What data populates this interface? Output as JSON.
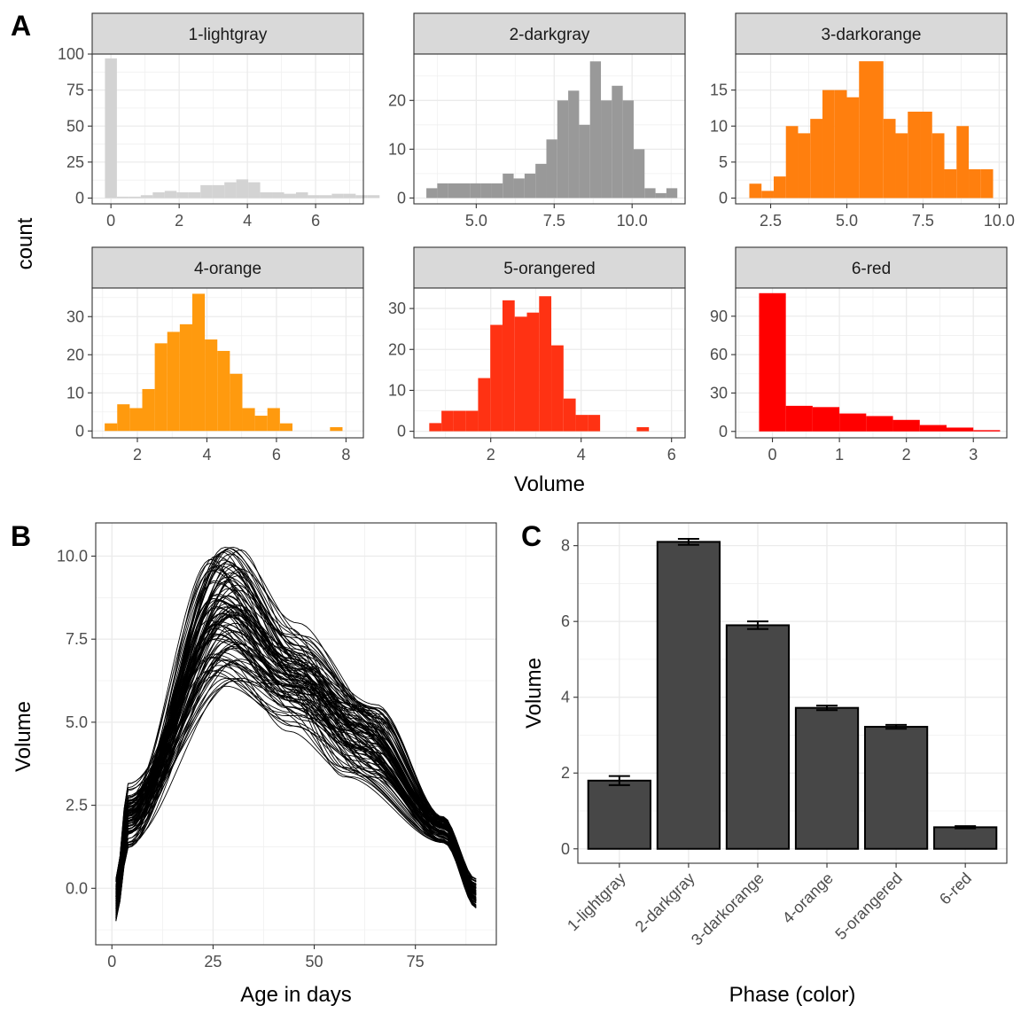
{
  "panel_labels": [
    "A",
    "B",
    "C"
  ],
  "chart_data": [
    {
      "panel": "A",
      "type": "bar",
      "subtype": "histogram-facets",
      "xlabel": "Volume",
      "ylabel": "count",
      "grid": true,
      "facets": [
        {
          "label": "1-lightgray",
          "color": "#d3d3d3",
          "bin_width": 0.35,
          "x_start": -0.175,
          "values": [
            97,
            1,
            1,
            2,
            4,
            5,
            4,
            4,
            9,
            9,
            11,
            13,
            11,
            4,
            4,
            3,
            4,
            2,
            2,
            3,
            3,
            2,
            2
          ],
          "xlim": [
            -0.55,
            7.4
          ],
          "ylim": [
            -4,
            100
          ],
          "xticks": [
            0,
            2,
            4,
            6
          ],
          "yticks": [
            0,
            25,
            50,
            75,
            100
          ]
        },
        {
          "label": "2-darkgray",
          "color": "#999999",
          "bin_width": 0.35,
          "x_start": 3.4,
          "values": [
            2,
            3,
            3,
            3,
            3,
            3,
            3,
            5,
            4,
            5,
            7,
            12,
            20,
            22,
            15,
            28,
            20,
            23,
            20,
            10,
            2,
            1,
            2
          ],
          "xlim": [
            3.0,
            11.7
          ],
          "ylim": [
            -1.2,
            29.5
          ],
          "xticks": [
            5.0,
            7.5,
            10.0
          ],
          "yticks": [
            0,
            10,
            20
          ]
        },
        {
          "label": "3-darkorange",
          "color": "#ff7f0e",
          "bin_width": 0.4,
          "x_start": 1.8,
          "values": [
            2,
            1,
            3,
            10,
            9,
            11,
            15,
            15,
            14,
            19,
            19,
            11,
            9,
            12,
            12,
            9,
            4,
            10,
            4,
            4
          ],
          "xlim": [
            1.35,
            10.25
          ],
          "ylim": [
            -0.8,
            20
          ],
          "xticks": [
            2.5,
            5.0,
            7.5,
            10.0
          ],
          "yticks": [
            0,
            5,
            10,
            15
          ]
        },
        {
          "label": "4-orange",
          "color": "#ff9a0e",
          "bin_width": 0.36,
          "x_start": 1.06,
          "values": [
            2,
            7,
            6,
            11,
            23,
            26,
            28,
            36,
            24,
            21,
            15,
            6,
            4,
            6,
            2,
            0,
            0,
            0,
            1
          ],
          "xlim": [
            0.7,
            8.5
          ],
          "ylim": [
            -1.8,
            37.5
          ],
          "xticks": [
            2,
            4,
            6,
            8
          ],
          "yticks": [
            0,
            10,
            20,
            30
          ]
        },
        {
          "label": "5-orangered",
          "color": "#ff3213",
          "bin_width": 0.27,
          "x_start": 0.64,
          "values": [
            2,
            5,
            5,
            5,
            13,
            26,
            32,
            28,
            29,
            33,
            21,
            8,
            4,
            4,
            0,
            0,
            0,
            1
          ],
          "xlim": [
            0.3,
            6.3
          ],
          "ylim": [
            -1.6,
            35
          ],
          "xticks": [
            2,
            4,
            6
          ],
          "yticks": [
            0,
            10,
            20,
            30
          ]
        },
        {
          "label": "6-red",
          "color": "#ff0000",
          "bin_width": 0.4,
          "x_start": -0.2,
          "values": [
            108,
            20,
            19,
            14,
            12,
            9,
            5,
            3,
            1
          ],
          "xlim": [
            -0.55,
            3.5
          ],
          "ylim": [
            -5,
            112
          ],
          "xticks": [
            0,
            1,
            2,
            3
          ],
          "yticks": [
            0,
            30,
            60,
            90
          ]
        }
      ]
    },
    {
      "panel": "B",
      "type": "line",
      "xlabel": "Age in days",
      "ylabel": "Volume",
      "grid": true,
      "xlim": [
        -4,
        95
      ],
      "ylim": [
        -1.7,
        11
      ],
      "xticks": [
        0,
        25,
        50,
        75
      ],
      "ytick_labels": [
        "0.0",
        "2.5",
        "5.0",
        "7.5",
        "10.0"
      ],
      "yticks": [
        0,
        2.5,
        5,
        7.5,
        10
      ],
      "x_range": [
        1,
        90
      ],
      "curve_count": 100,
      "peak_day_range": [
        24,
        32
      ],
      "peak_volume_range": [
        6.0,
        10.3
      ],
      "shoulder_day": 62,
      "shoulder_volume_range": [
        2.1,
        5.6
      ],
      "end_volume_range": [
        -0.6,
        0.3
      ],
      "line_color": "#000000"
    },
    {
      "panel": "C",
      "type": "bar",
      "xlabel": "Phase (color)",
      "ylabel": "Volume",
      "grid": true,
      "categories": [
        "1-lightgray",
        "2-darkgray",
        "3-darkorange",
        "4-orange",
        "5-orangered",
        "6-red"
      ],
      "values": [
        1.8,
        8.1,
        5.9,
        3.72,
        3.22,
        0.57
      ],
      "error": [
        0.12,
        0.08,
        0.1,
        0.06,
        0.05,
        0.03
      ],
      "ylim": [
        -0.38,
        8.6
      ],
      "yticks": [
        0,
        2,
        4,
        6,
        8
      ],
      "bar_color": "#474747"
    }
  ]
}
